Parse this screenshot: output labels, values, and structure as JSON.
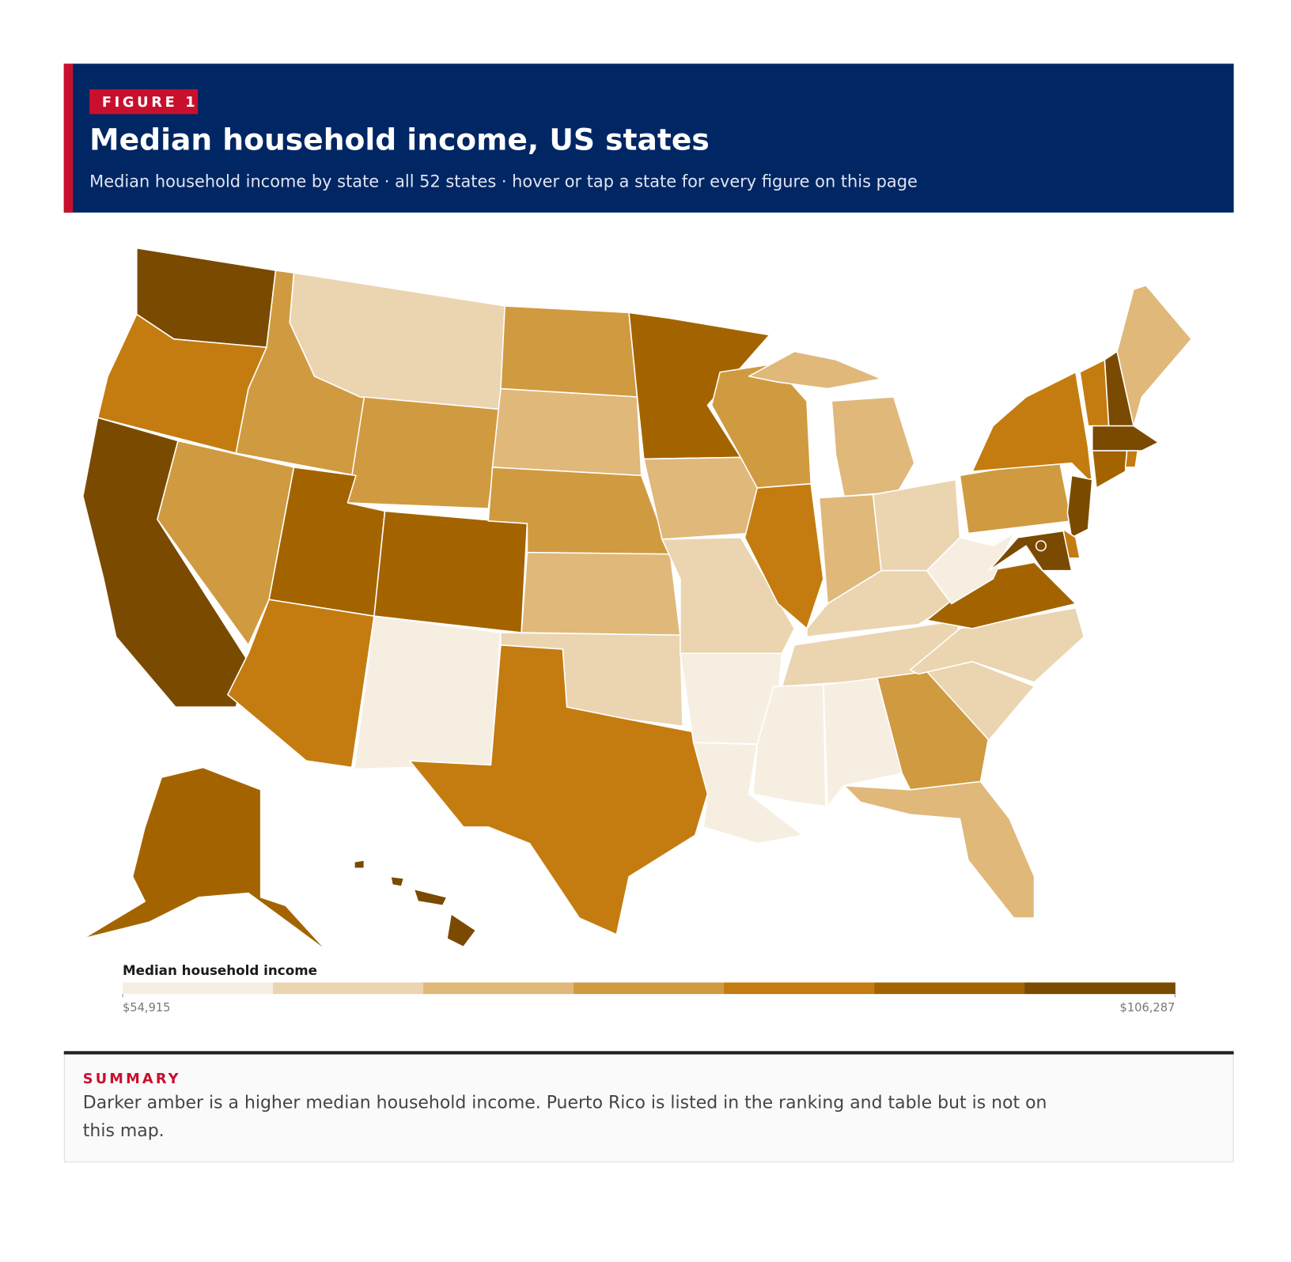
{
  "header": {
    "figure_label": "FIGURE 1",
    "title": "Median household income, US states",
    "subtitle": "Median household income by state · all 52 states · hover or tap a state for every figure on this page"
  },
  "legend": {
    "title": "Median household income",
    "colors": [
      "#f7eee2",
      "#ebd4b0",
      "#dfb87a",
      "#d09a40",
      "#c47c10",
      "#a36400",
      "#7a4a00"
    ],
    "min": {
      "value": 54915,
      "label": "$54,915"
    },
    "max": {
      "value": 106287,
      "label": "$106,287"
    }
  },
  "summary": {
    "heading": "SUMMARY",
    "text": "Darker amber is a higher median household income. Puerto Rico is listed in the ranking and table but is not on this map."
  }
}
